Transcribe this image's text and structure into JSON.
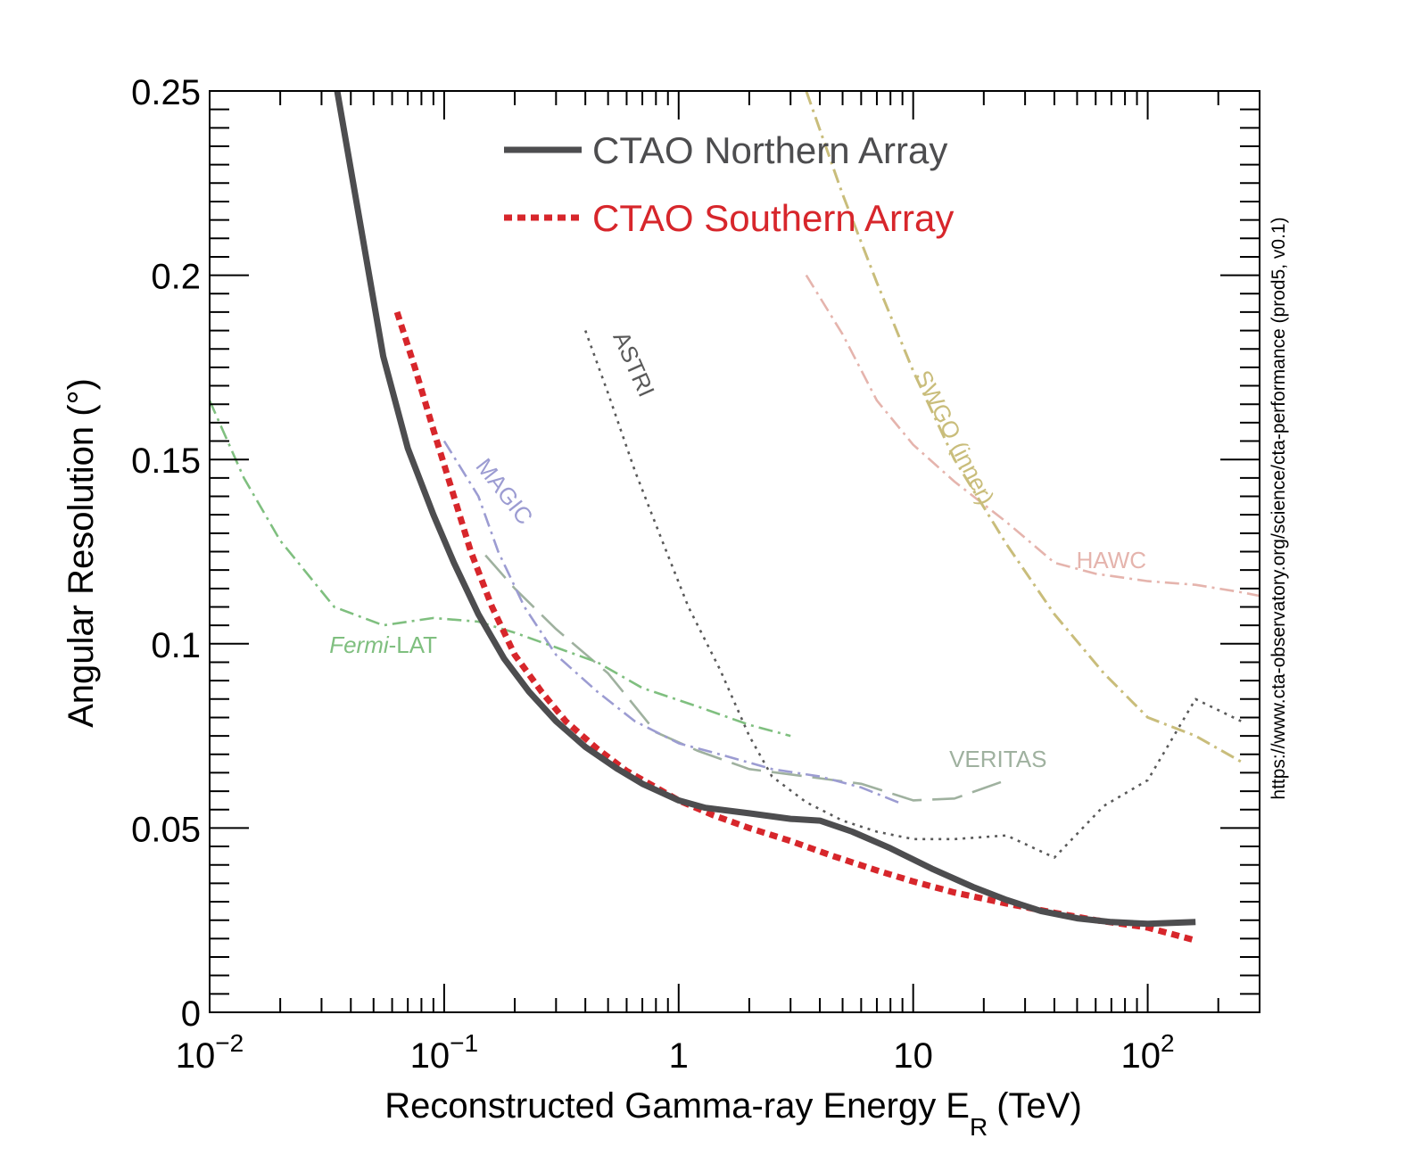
{
  "chart_data": {
    "type": "line",
    "title": "",
    "xlabel": "Reconstructed Gamma-ray Energy E",
    "xlabel_sub": "R",
    "xlabel_unit": "(TeV)",
    "ylabel": "Angular Resolution (°)",
    "xscale": "log",
    "xlim": [
      0.01,
      300
    ],
    "ylim": [
      0,
      0.25
    ],
    "grid": false,
    "legend_position": "top-center",
    "side_note": "https://www.cta-observatory.org/science/cta-performance (prod5, v0.1)",
    "x_ticks": [
      {
        "value": 0.01,
        "base": "10",
        "exp": "−2"
      },
      {
        "value": 0.1,
        "base": "10",
        "exp": "−1"
      },
      {
        "value": 1,
        "base": "1",
        "exp": ""
      },
      {
        "value": 10,
        "base": "10",
        "exp": ""
      },
      {
        "value": 100,
        "base": "10",
        "exp": "2"
      }
    ],
    "y_ticks": [
      {
        "value": 0,
        "label": "0"
      },
      {
        "value": 0.05,
        "label": "0.05"
      },
      {
        "value": 0.1,
        "label": "0.1"
      },
      {
        "value": 0.15,
        "label": "0.15"
      },
      {
        "value": 0.2,
        "label": "0.2"
      },
      {
        "value": 0.25,
        "label": "0.25"
      }
    ],
    "series": [
      {
        "name": "CTAO Northern Array",
        "legend": true,
        "color": "#4d4d4f",
        "style": "solid",
        "weight": "heavy",
        "points": [
          [
            0.035,
            0.25
          ],
          [
            0.045,
            0.21
          ],
          [
            0.055,
            0.178
          ],
          [
            0.07,
            0.153
          ],
          [
            0.09,
            0.135
          ],
          [
            0.11,
            0.122
          ],
          [
            0.14,
            0.108
          ],
          [
            0.18,
            0.096
          ],
          [
            0.23,
            0.087
          ],
          [
            0.3,
            0.079
          ],
          [
            0.4,
            0.072
          ],
          [
            0.55,
            0.066
          ],
          [
            0.7,
            0.062
          ],
          [
            1.0,
            0.0575
          ],
          [
            1.3,
            0.0555
          ],
          [
            2.0,
            0.054
          ],
          [
            3.0,
            0.0525
          ],
          [
            4.0,
            0.052
          ],
          [
            5.5,
            0.049
          ],
          [
            8.0,
            0.0445
          ],
          [
            12,
            0.039
          ],
          [
            18,
            0.034
          ],
          [
            25,
            0.0305
          ],
          [
            35,
            0.0275
          ],
          [
            50,
            0.0255
          ],
          [
            70,
            0.0245
          ],
          [
            100,
            0.024
          ],
          [
            160,
            0.0245
          ]
        ]
      },
      {
        "name": "CTAO Southern Array",
        "legend": true,
        "color": "#d7262b",
        "style": "dotted",
        "weight": "heavy",
        "points": [
          [
            0.063,
            0.19
          ],
          [
            0.075,
            0.175
          ],
          [
            0.09,
            0.158
          ],
          [
            0.11,
            0.14
          ],
          [
            0.13,
            0.125
          ],
          [
            0.16,
            0.11
          ],
          [
            0.2,
            0.097
          ],
          [
            0.26,
            0.087
          ],
          [
            0.33,
            0.079
          ],
          [
            0.45,
            0.0715
          ],
          [
            0.6,
            0.0655
          ],
          [
            0.8,
            0.061
          ],
          [
            1.0,
            0.0575
          ],
          [
            1.4,
            0.0535
          ],
          [
            2.0,
            0.05
          ],
          [
            3.0,
            0.0465
          ],
          [
            4.5,
            0.0425
          ],
          [
            7,
            0.0385
          ],
          [
            10,
            0.0355
          ],
          [
            15,
            0.0325
          ],
          [
            25,
            0.0295
          ],
          [
            40,
            0.027
          ],
          [
            60,
            0.025
          ],
          [
            100,
            0.023
          ],
          [
            160,
            0.0195
          ]
        ]
      },
      {
        "name": "Fermi-LAT",
        "name_italic": "Fermi",
        "name_rest": "-LAT",
        "label_value": [
          0.055,
          0.0975
        ],
        "color": "#7fbf7f",
        "style": "dashdot",
        "weight": "thin",
        "points": [
          [
            0.01,
            0.166
          ],
          [
            0.014,
            0.145
          ],
          [
            0.02,
            0.128
          ],
          [
            0.034,
            0.11
          ],
          [
            0.055,
            0.105
          ],
          [
            0.09,
            0.107
          ],
          [
            0.14,
            0.106
          ],
          [
            0.2,
            0.103
          ],
          [
            0.3,
            0.099
          ],
          [
            0.45,
            0.095
          ],
          [
            0.7,
            0.088
          ],
          [
            1.2,
            0.083
          ],
          [
            2.0,
            0.078
          ],
          [
            3.0,
            0.075
          ]
        ]
      },
      {
        "name": "MAGIC",
        "label_value": [
          0.17,
          0.14
        ],
        "label_angle": 52,
        "color": "#9c9cd2",
        "style": "dashdot",
        "weight": "thin",
        "points": [
          [
            0.1,
            0.155
          ],
          [
            0.14,
            0.14
          ],
          [
            0.17,
            0.125
          ],
          [
            0.22,
            0.11
          ],
          [
            0.3,
            0.097
          ],
          [
            0.45,
            0.087
          ],
          [
            0.65,
            0.079
          ],
          [
            1.0,
            0.073
          ],
          [
            1.5,
            0.07
          ],
          [
            2.5,
            0.066
          ],
          [
            4,
            0.064
          ],
          [
            6,
            0.061
          ],
          [
            9,
            0.0565
          ]
        ]
      },
      {
        "name": "VERITAS",
        "label_value": [
          23,
          0.0665
        ],
        "color": "#9fb19f",
        "style": "longdash",
        "weight": "thin",
        "points": [
          [
            0.15,
            0.124
          ],
          [
            0.2,
            0.115
          ],
          [
            0.3,
            0.104
          ],
          [
            0.5,
            0.092
          ],
          [
            0.8,
            0.076
          ],
          [
            1.2,
            0.071
          ],
          [
            2.0,
            0.066
          ],
          [
            3.5,
            0.064
          ],
          [
            6,
            0.062
          ],
          [
            10,
            0.0575
          ],
          [
            15,
            0.058
          ],
          [
            25,
            0.063
          ]
        ]
      },
      {
        "name": "ASTRI",
        "label_value": [
          0.6,
          0.175
        ],
        "label_angle": 66,
        "color": "#595959",
        "style": "dotted_thin",
        "weight": "thin",
        "points": [
          [
            0.4,
            0.185
          ],
          [
            0.5,
            0.168
          ],
          [
            0.65,
            0.147
          ],
          [
            0.85,
            0.128
          ],
          [
            1.1,
            0.11
          ],
          [
            1.5,
            0.093
          ],
          [
            2.0,
            0.075
          ],
          [
            2.5,
            0.064
          ],
          [
            3.5,
            0.057
          ],
          [
            5,
            0.052
          ],
          [
            7,
            0.049
          ],
          [
            10,
            0.047
          ],
          [
            15,
            0.047
          ],
          [
            25,
            0.048
          ],
          [
            40,
            0.042
          ],
          [
            65,
            0.056
          ],
          [
            100,
            0.063
          ],
          [
            160,
            0.085
          ],
          [
            250,
            0.079
          ]
        ]
      },
      {
        "name": "SWGO (inner)",
        "label_value": [
          14,
          0.155
        ],
        "label_angle": 63,
        "color": "#c9bd7b",
        "style": "dashdot",
        "weight": "normal",
        "points": [
          [
            3.5,
            0.25
          ],
          [
            5,
            0.222
          ],
          [
            7,
            0.198
          ],
          [
            10,
            0.174
          ],
          [
            15,
            0.15
          ],
          [
            25,
            0.127
          ],
          [
            40,
            0.108
          ],
          [
            65,
            0.092
          ],
          [
            100,
            0.08
          ],
          [
            160,
            0.075
          ],
          [
            250,
            0.068
          ]
        ]
      },
      {
        "name": "HAWC",
        "label_value": [
          70,
          0.1205
        ],
        "color": "#e5b4ad",
        "style": "dashdot",
        "weight": "thin",
        "points": [
          [
            3.5,
            0.2
          ],
          [
            5,
            0.184
          ],
          [
            7,
            0.166
          ],
          [
            10,
            0.154
          ],
          [
            15,
            0.144
          ],
          [
            25,
            0.133
          ],
          [
            40,
            0.122
          ],
          [
            60,
            0.119
          ],
          [
            100,
            0.117
          ],
          [
            160,
            0.116
          ],
          [
            250,
            0.114
          ],
          [
            300,
            0.113
          ]
        ]
      }
    ]
  }
}
